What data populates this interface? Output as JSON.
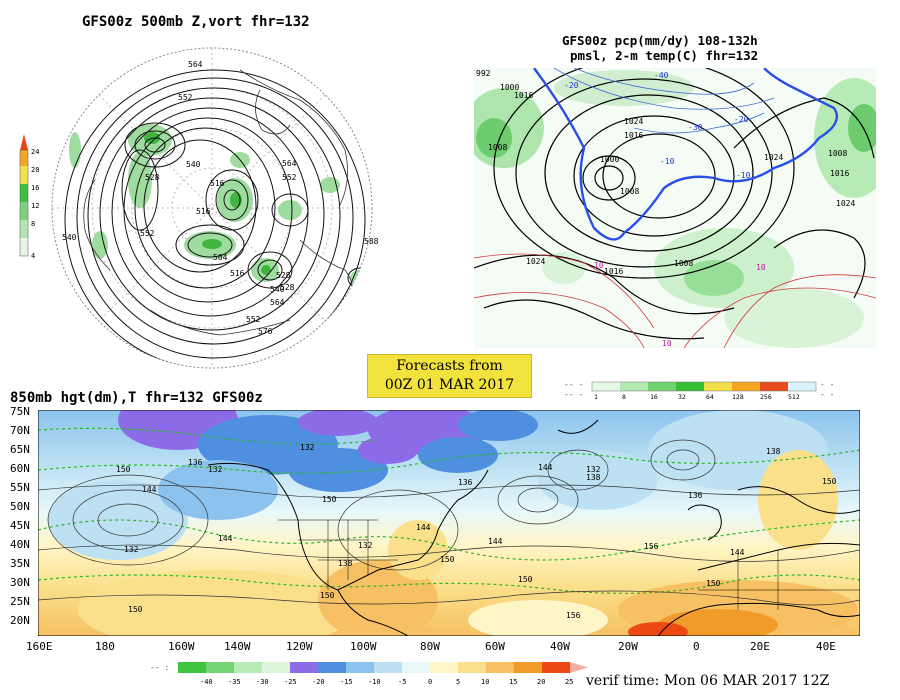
{
  "panels": {
    "top_left": {
      "title": "GFS00z   500mb Z,vort    fhr=132",
      "contour_labels": [
        "564",
        "552",
        "540",
        "516",
        "504",
        "528",
        "516",
        "528",
        "540",
        "552",
        "564",
        "576",
        "552",
        "564",
        "588",
        "528",
        "540",
        "552",
        "516"
      ],
      "colorbar": {
        "colors": [
          "#e6f5e6",
          "#b4e6b4",
          "#7ed07e",
          "#3fbf3f",
          "#f2e14a",
          "#f5a623",
          "#e8431e"
        ],
        "labels": [
          "24",
          "20",
          "16",
          "12",
          "8",
          "4"
        ]
      }
    },
    "top_right": {
      "title_line1": "GFS00z pcp(mm/dy) 108-132h",
      "title_line2": "pmsl, 2-m temp(C)  fhr=132",
      "contour_labels": [
        "992",
        "1000",
        "1016",
        "1024",
        "1008",
        "1000",
        "1008",
        "1016",
        "1024",
        "1008",
        "1016",
        "1024",
        "10",
        "10",
        "10",
        "-10",
        "-20",
        "-30",
        "-40"
      ],
      "colorbar": {
        "colors": [
          "#e6f8e6",
          "#b0eab0",
          "#72d372",
          "#36c036",
          "#f3e04b",
          "#f5a623",
          "#e74c1c",
          "#d8f3fb"
        ],
        "labels": [
          "1",
          "8",
          "16",
          "32",
          "64",
          "128",
          "256",
          "512"
        ]
      }
    },
    "center_box": {
      "line1": "Forecasts from",
      "line2": "00Z 01 MAR 2017"
    },
    "bottom": {
      "title": "850mb hgt(dm),T  fhr=132 GFS00z",
      "lat_labels": [
        "75N",
        "70N",
        "65N",
        "60N",
        "55N",
        "50N",
        "45N",
        "40N",
        "35N",
        "30N",
        "25N",
        "20N"
      ],
      "lon_labels": [
        "160E",
        "180",
        "160W",
        "140W",
        "120W",
        "100W",
        "80W",
        "60W",
        "40W",
        "20W",
        "0",
        "20E",
        "40E"
      ],
      "contour_labels": [
        "150",
        "132",
        "136",
        "132",
        "144",
        "132",
        "144",
        "150",
        "132",
        "144",
        "136",
        "138",
        "144",
        "132",
        "138",
        "144",
        "156",
        "150",
        "156",
        "150",
        "144",
        "150",
        "150",
        "138",
        "150",
        "156"
      ],
      "colorbar": {
        "colors": [
          "#3ec43e",
          "#74d474",
          "#b6ebb6",
          "#dcf5dc",
          "#8c6be8",
          "#4f8fe0",
          "#8cc3ee",
          "#bde1f3",
          "#e8f8fb",
          "#fff6c8",
          "#fbe08c",
          "#f6c063",
          "#f19c2a",
          "#ec4a12",
          "#f3b0a0"
        ],
        "labels": [
          "-40",
          "-35",
          "-30",
          "-25",
          "-20",
          "-15",
          "-10",
          "-5",
          "0",
          "5",
          "10",
          "15",
          "20",
          "25"
        ]
      },
      "verif_time": "verif time: Mon 06 MAR 2017 12Z"
    }
  }
}
